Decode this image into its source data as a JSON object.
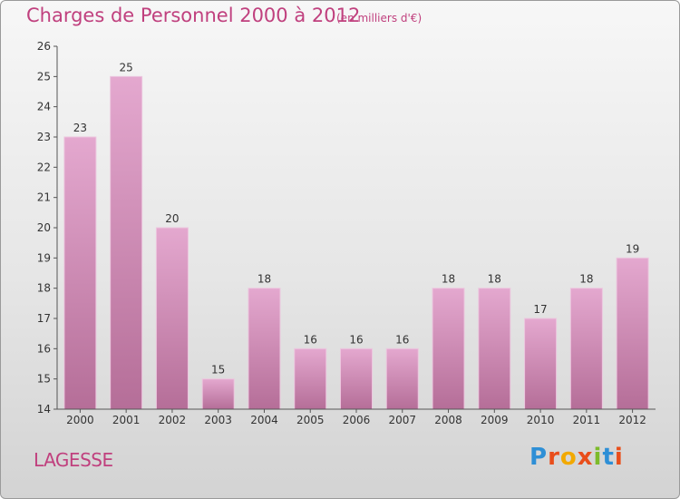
{
  "header": {
    "title": "Charges de Personnel 2000 à 2012",
    "unit": "(en milliers d'€)"
  },
  "footer": {
    "commune": "LAGESSE",
    "brand": "Proxiti"
  },
  "colors": {
    "title": "#c0407e",
    "bar_top": "#e4a8cf",
    "bar_bottom": "#b56e98",
    "axis": "#555555"
  },
  "chart_data": {
    "type": "bar",
    "title": "Charges de Personnel 2000 à 2012",
    "subtitle": "(en milliers d'€)",
    "categories": [
      "2000",
      "2001",
      "2002",
      "2003",
      "2004",
      "2005",
      "2006",
      "2007",
      "2008",
      "2009",
      "2010",
      "2011",
      "2012"
    ],
    "values": [
      23,
      25,
      20,
      15,
      18,
      16,
      16,
      16,
      18,
      18,
      17,
      18,
      19
    ],
    "ylim": [
      14,
      26
    ],
    "yticks": [
      14,
      15,
      16,
      17,
      18,
      19,
      20,
      21,
      22,
      23,
      24,
      25,
      26
    ],
    "grid": false,
    "legend": "none"
  }
}
